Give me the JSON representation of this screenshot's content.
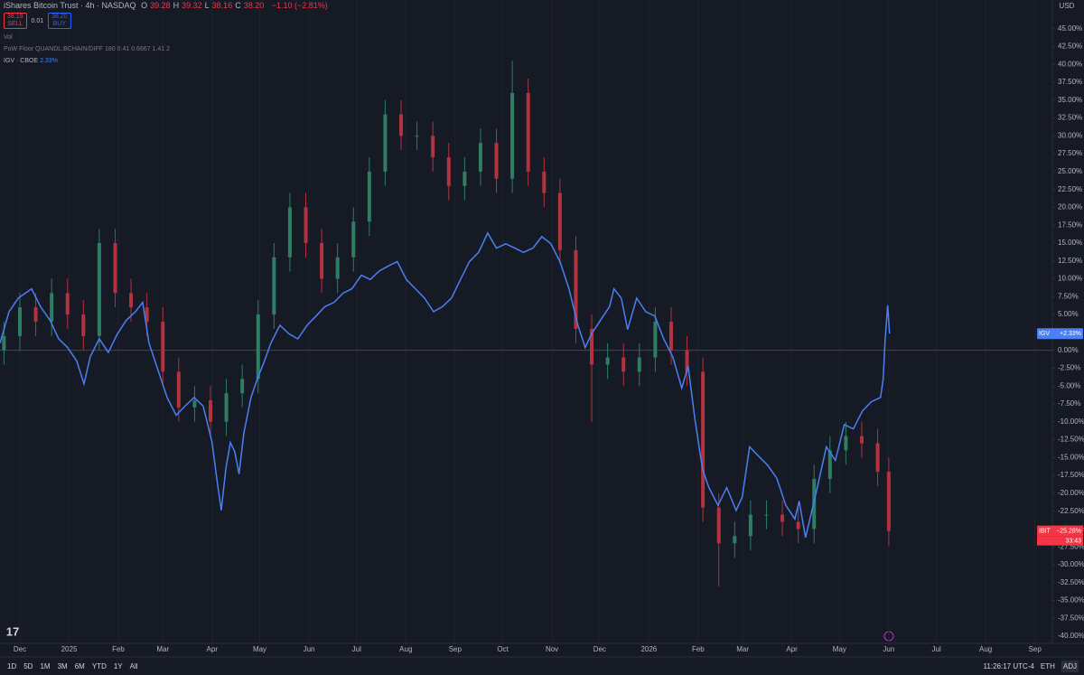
{
  "chart_data": {
    "type": "line",
    "ylim": [
      -41,
      49
    ],
    "xlim": [
      -12.5,
      650
    ],
    "yticks": [
      {
        "value": 45,
        "label": "45.00%"
      },
      {
        "value": 42.5,
        "label": "42.50%"
      },
      {
        "value": 40,
        "label": "40.00%"
      },
      {
        "value": 37.5,
        "label": "37.50%"
      },
      {
        "value": 35,
        "label": "35.00%"
      },
      {
        "value": 32.5,
        "label": "32.50%"
      },
      {
        "value": 30,
        "label": "30.00%"
      },
      {
        "value": 27.5,
        "label": "27.50%"
      },
      {
        "value": 25,
        "label": "25.00%"
      },
      {
        "value": 22.5,
        "label": "22.50%"
      },
      {
        "value": 20,
        "label": "20.00%"
      },
      {
        "value": 17.5,
        "label": "17.50%"
      },
      {
        "value": 15,
        "label": "15.00%"
      },
      {
        "value": 12.5,
        "label": "12.50%"
      },
      {
        "value": 10,
        "label": "10.00%"
      },
      {
        "value": 7.5,
        "label": "7.50%"
      },
      {
        "value": 5,
        "label": "5.00%"
      },
      {
        "value": 2.5,
        "label": "2.50%"
      },
      {
        "value": 0,
        "label": "0.00%"
      },
      {
        "value": -2.5,
        "label": "-2.50%"
      },
      {
        "value": -5,
        "label": "-5.00%"
      },
      {
        "value": -7.5,
        "label": "-7.50%"
      },
      {
        "value": -10,
        "label": "-10.00%"
      },
      {
        "value": -12.5,
        "label": "-12.50%"
      },
      {
        "value": -15,
        "label": "-15.00%"
      },
      {
        "value": -17.5,
        "label": "-17.50%"
      },
      {
        "value": -20,
        "label": "-20.00%"
      },
      {
        "value": -22.5,
        "label": "-22.50%"
      },
      {
        "value": -25,
        "label": "-25.00%"
      },
      {
        "value": -27.5,
        "label": "-27.50%"
      },
      {
        "value": -30,
        "label": "-30.00%"
      },
      {
        "value": -32.5,
        "label": "-32.50%"
      },
      {
        "value": -35,
        "label": "-35.00%"
      },
      {
        "value": -37.5,
        "label": "-37.50%"
      },
      {
        "value": -40,
        "label": "-40.00%"
      }
    ],
    "xticks": [
      {
        "value": 0,
        "label": "Dec"
      },
      {
        "value": 31,
        "label": "2025"
      },
      {
        "value": 62,
        "label": "Feb"
      },
      {
        "value": 90,
        "label": "Mar"
      },
      {
        "value": 121,
        "label": "Apr"
      },
      {
        "value": 151,
        "label": "May"
      },
      {
        "value": 182,
        "label": "Jun"
      },
      {
        "value": 212,
        "label": "Jul"
      },
      {
        "value": 243,
        "label": "Aug"
      },
      {
        "value": 274,
        "label": "Sep"
      },
      {
        "value": 304,
        "label": "Oct"
      },
      {
        "value": 335,
        "label": "Nov"
      },
      {
        "value": 365,
        "label": "Dec"
      },
      {
        "value": 396,
        "label": "2026"
      },
      {
        "value": 427,
        "label": "Feb"
      },
      {
        "value": 455,
        "label": "Mar"
      },
      {
        "value": 486,
        "label": "Apr"
      },
      {
        "value": 516,
        "label": "May"
      },
      {
        "value": 547,
        "label": "Jun"
      },
      {
        "value": 577,
        "label": "Jul"
      },
      {
        "value": 608,
        "label": "Aug"
      },
      {
        "value": 639,
        "label": "Sep"
      }
    ],
    "grid": true,
    "series": [
      {
        "name": "IBIT",
        "type": "candlestick",
        "up_color": "#2f7d62",
        "down_color": "#b2333f",
        "tag_color": "#f23645",
        "price_tag": "−25.28%",
        "countdown": "33:43",
        "x": [
          -10,
          0,
          10,
          20,
          30,
          40,
          50,
          60,
          70,
          80,
          90,
          100,
          110,
          120,
          130,
          140,
          150,
          160,
          170,
          180,
          190,
          200,
          210,
          220,
          230,
          240,
          250,
          260,
          270,
          280,
          290,
          300,
          310,
          320,
          330,
          340,
          350,
          360,
          370,
          380,
          390,
          400,
          410,
          420,
          430,
          440,
          450,
          460,
          470,
          480,
          490,
          500,
          510,
          520,
          530,
          540,
          547
        ],
        "open": [
          0,
          2,
          6,
          4,
          8,
          5,
          2,
          15,
          8,
          6,
          4,
          -3,
          -8,
          -7,
          -10,
          -6,
          -4,
          5,
          13,
          20,
          15,
          10,
          13,
          18,
          25,
          33,
          30,
          30,
          27,
          23,
          25,
          29,
          24,
          36,
          25,
          22,
          14,
          3,
          -2,
          -1,
          -3,
          -1,
          4,
          0,
          -3,
          -22,
          -27,
          -26,
          -23,
          -23,
          -24,
          -25,
          -18,
          -14,
          -12,
          -13,
          -17
        ],
        "high": [
          4,
          8,
          8,
          10,
          10,
          7,
          17,
          17,
          10,
          8,
          6,
          -1,
          -5,
          -5,
          -4,
          -2,
          7,
          15,
          22,
          22,
          17,
          15,
          20,
          27,
          35,
          35,
          32,
          32,
          29,
          27,
          31,
          31,
          40.5,
          38,
          27,
          24,
          16,
          5,
          1,
          1,
          1,
          6,
          6,
          2,
          -1,
          -20,
          -24,
          -21,
          -21,
          -21,
          -22,
          -16,
          -12,
          -10,
          -10,
          -11,
          -15
        ],
        "low": [
          -2,
          0,
          2,
          2,
          3,
          0,
          0,
          6,
          4,
          2,
          -5,
          -10,
          -10,
          -12,
          -12,
          -8,
          -6,
          3,
          11,
          13,
          8,
          8,
          11,
          16,
          23,
          28,
          28,
          25,
          21,
          21,
          23,
          22,
          22,
          23,
          20,
          12,
          1,
          -10,
          -4,
          -5,
          -5,
          -3,
          -2,
          -5,
          -24,
          -33,
          -29,
          -28,
          -25,
          -26,
          -27,
          -27,
          -20,
          -16,
          -15,
          -19,
          -27.28
        ],
        "close": [
          2,
          6,
          4,
          8,
          5,
          2,
          15,
          8,
          6,
          4,
          -3,
          -8,
          -7,
          -10,
          -6,
          -4,
          5,
          13,
          20,
          15,
          10,
          13,
          18,
          25,
          33,
          30,
          30,
          27,
          23,
          25,
          29,
          24,
          36,
          25,
          22,
          14,
          3,
          -2,
          -1,
          -3,
          -1,
          4,
          0,
          -3,
          -22,
          -27,
          -26,
          -23,
          -23,
          -24,
          -25,
          -18,
          -14,
          -12,
          -13,
          -17,
          -25.28
        ]
      },
      {
        "name": "IGV",
        "type": "line",
        "color": "#4a7ff5",
        "price_tag": "+2.33%",
        "x": [
          -12.5,
          -6.8,
          -1,
          7.4,
          13,
          19,
          24.4,
          30,
          35.8,
          40.4,
          44.3,
          50,
          55.7,
          61.4,
          67,
          72.8,
          77.3,
          81.3,
          87,
          92.7,
          98.4,
          104,
          109.7,
          115.4,
          121,
          124,
          126.8,
          129.6,
          132.5,
          135.3,
          138,
          141,
          145.5,
          149.5,
          154,
          158,
          163.7,
          169.4,
          175,
          180.8,
          186.5,
          192,
          197.8,
          203.5,
          209,
          215,
          220.6,
          226.3,
          232,
          237.6,
          243.3,
          249,
          254.7,
          260.4,
          266,
          271.7,
          277.4,
          283,
          288.8,
          294.5,
          300,
          305.9,
          311.6,
          317,
          323,
          328.6,
          334.3,
          340,
          345.7,
          351.3,
          355.9,
          359.9,
          365.5,
          371.2,
          374,
          378.6,
          382.6,
          388.3,
          394,
          399.7,
          405.3,
          411,
          416.7,
          420.7,
          425,
          429.8,
          433.8,
          439.5,
          445,
          450.9,
          454.8,
          459.4,
          465,
          470.8,
          476.5,
          482.2,
          487.9,
          490.6,
          494.6,
          498,
          502,
          507.7,
          513.4,
          519,
          524.7,
          530.4,
          536,
          541.8,
          543.5,
          544.6,
          546.3,
          547.5
        ],
        "values": [
          1,
          5.4,
          7.3,
          8.6,
          6.1,
          4.2,
          1.6,
          0.4,
          -1.5,
          -4.7,
          -0.9,
          1.6,
          -0.3,
          2.3,
          4.2,
          5.4,
          6.7,
          1,
          -2.8,
          -6.6,
          -9.1,
          -7.8,
          -6.6,
          -7.8,
          -12.9,
          -18,
          -22.4,
          -16.7,
          -12.9,
          -14.2,
          -17.3,
          -11.6,
          -6.6,
          -4,
          -1.5,
          1,
          3.5,
          2.3,
          1.6,
          3.5,
          4.8,
          6.1,
          6.7,
          8,
          8.6,
          10.5,
          9.9,
          11.1,
          11.8,
          12.4,
          9.9,
          8.6,
          7.3,
          5.4,
          6.1,
          7.3,
          9.9,
          12.4,
          13.7,
          16.4,
          14.3,
          14.9,
          14.3,
          13.7,
          14.3,
          15.9,
          14.9,
          12.4,
          8.6,
          3.5,
          0.4,
          2.3,
          4.2,
          6.1,
          8.6,
          7.3,
          2.9,
          7.3,
          5.4,
          4.8,
          1.6,
          -0.9,
          -5.3,
          -2.2,
          -9.7,
          -16.7,
          -19.2,
          -21.7,
          -19.2,
          -22.4,
          -20.5,
          -13.5,
          -14.8,
          -16.1,
          -17.9,
          -21.7,
          -23.6,
          -21.1,
          -26.2,
          -23,
          -19.2,
          -13.5,
          -15.4,
          -10.4,
          -11,
          -8.5,
          -7.2,
          -6.6,
          -4,
          1,
          6.3,
          2.33
        ]
      }
    ]
  },
  "ui": {
    "symbol": "iShares Bitcoin Trust · 4h · NASDAQ",
    "ohlc": [
      {
        "label": "O",
        "value": "39.28"
      },
      {
        "label": "H",
        "value": "39.32"
      },
      {
        "label": "L",
        "value": "38.16"
      },
      {
        "label": "C",
        "value": "38.20"
      }
    ],
    "change": "−1.10 (−2.81%)",
    "sell_price": "38.19",
    "sell": "SELL",
    "spread": "0.01",
    "buy_price": "38.20",
    "buy": "BUY",
    "indicators": [
      "Vol",
      "PoW Floor QUANDL:BCHAIN/DIFF 180 0.41 0.6667 1.41 2"
    ],
    "compare_name": "IGV · CBOE",
    "compare_value": "2.33%",
    "currency": "USD",
    "ranges": [
      "1D",
      "5D",
      "1M",
      "3M",
      "6M",
      "YTD",
      "1Y",
      "All"
    ],
    "clock": "11:26:17 UTC-4",
    "session": "ETH",
    "adj": "ADJ",
    "logo": "17"
  }
}
